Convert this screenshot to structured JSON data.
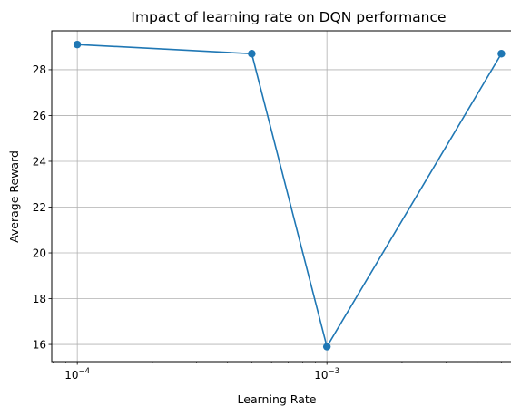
{
  "chart_data": {
    "type": "line",
    "title": "Impact of learning rate on DQN performance",
    "xlabel": "Learning Rate",
    "ylabel": "Average Reward",
    "x_scale": "log",
    "grid": true,
    "legend": "none",
    "color": "#1f77b4",
    "xlim": [
      7.9e-05,
      0.0063
    ],
    "ylim": [
      15.25,
      29.7
    ],
    "x_ticks": [
      {
        "value": 0.0001,
        "base": "10",
        "exponent": "−4"
      },
      {
        "value": 0.001,
        "base": "10",
        "exponent": "−3"
      }
    ],
    "y_ticks": [
      16,
      18,
      20,
      22,
      24,
      26,
      28
    ],
    "series": [
      {
        "x": [
          0.0001,
          0.0005,
          0.001,
          0.005
        ],
        "y": [
          29.1,
          28.7,
          15.9,
          28.7
        ]
      }
    ]
  }
}
